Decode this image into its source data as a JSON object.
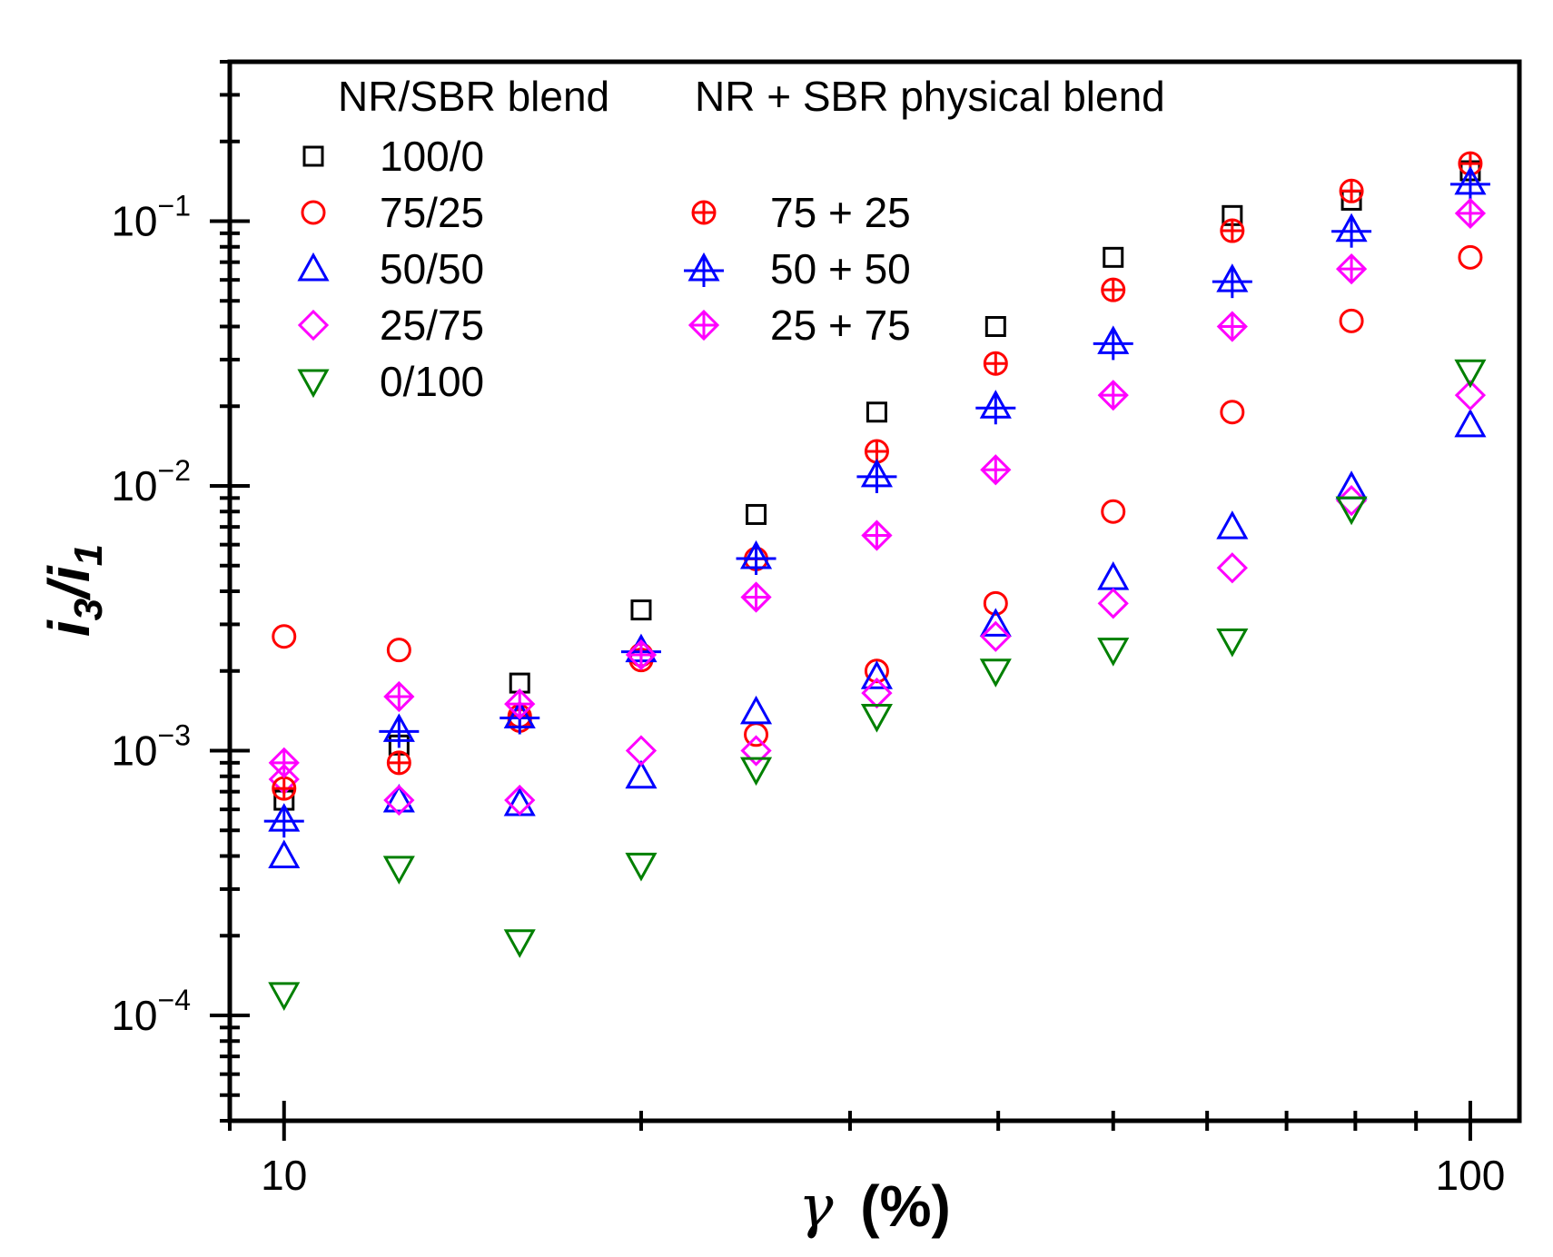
{
  "chart_data": {
    "type": "scatter",
    "xscale": "log",
    "yscale": "log",
    "xlim": [
      9.0,
      110
    ],
    "ylim": [
      4e-05,
      0.4
    ],
    "xlabel": "γ (%)",
    "ylabel": "i3/i1",
    "xlabel_parts": {
      "symbol": "γ",
      "unit": "(%)"
    },
    "ylabel_parts": {
      "num": "i",
      "num_sub": "3",
      "slash": "/",
      "den": "i",
      "den_sub": "1"
    },
    "x_ticks": [
      {
        "value": 10,
        "label": "10"
      },
      {
        "value": 100,
        "label": "100"
      }
    ],
    "y_ticks": [
      {
        "value": 0.0001,
        "base": "10",
        "exp": "−4"
      },
      {
        "value": 0.001,
        "base": "10",
        "exp": "−3"
      },
      {
        "value": 0.01,
        "base": "10",
        "exp": "−2"
      },
      {
        "value": 0.1,
        "base": "10",
        "exp": "−1"
      }
    ],
    "legend_headers": [
      "NR/SBR blend",
      "NR + SBR physical blend"
    ],
    "x": [
      10,
      12.5,
      15.8,
      20,
      25,
      31.6,
      39.8,
      50,
      63,
      79.4,
      100
    ],
    "series": [
      {
        "name": "100/0",
        "group": "NR/SBR blend",
        "marker": "square",
        "color": "#000000",
        "values": [
          0.00065,
          0.00105,
          0.0018,
          0.0034,
          0.0078,
          0.019,
          0.04,
          0.073,
          0.105,
          0.12,
          0.155
        ]
      },
      {
        "name": "75/25",
        "group": "NR/SBR blend",
        "marker": "circle",
        "color": "#ff0000",
        "values": [
          0.0027,
          0.0024,
          0.0013,
          0.0022,
          0.00115,
          0.002,
          0.0036,
          0.008,
          0.019,
          0.042,
          0.073
        ]
      },
      {
        "name": "50/50",
        "group": "NR/SBR blend",
        "marker": "triangle-up",
        "color": "#0000ff",
        "values": [
          0.0004,
          0.00065,
          0.00063,
          0.0008,
          0.0014,
          0.0019,
          0.003,
          0.0045,
          0.007,
          0.0099,
          0.017
        ]
      },
      {
        "name": "25/75",
        "group": "NR/SBR blend",
        "marker": "diamond",
        "color": "#ff00ff",
        "values": [
          0.00078,
          0.00065,
          0.00065,
          0.001,
          0.001,
          0.00165,
          0.0027,
          0.0036,
          0.0049,
          0.0088,
          0.022
        ]
      },
      {
        "name": "0/100",
        "group": "NR/SBR blend",
        "marker": "triangle-down",
        "color": "#008000",
        "values": [
          0.00012,
          0.00036,
          0.00019,
          0.00037,
          0.00085,
          0.00135,
          0.002,
          0.0024,
          0.0026,
          0.0082,
          0.027
        ]
      },
      {
        "name": "75 + 25",
        "group": "NR + SBR physical blend",
        "marker": "circle-plus",
        "color": "#ff0000",
        "values": [
          0.00072,
          0.0009,
          0.00135,
          0.0023,
          0.0053,
          0.0135,
          0.029,
          0.055,
          0.092,
          0.13,
          0.165
        ]
      },
      {
        "name": "50 + 50",
        "group": "NR + SBR physical blend",
        "marker": "triangle-plus",
        "color": "#0000ff",
        "values": [
          0.00055,
          0.0012,
          0.00135,
          0.0024,
          0.0054,
          0.011,
          0.02,
          0.035,
          0.06,
          0.093,
          0.14
        ]
      },
      {
        "name": "25 + 75",
        "group": "NR + SBR physical blend",
        "marker": "diamond-plus",
        "color": "#ff00ff",
        "values": [
          0.0009,
          0.0016,
          0.0015,
          0.0023,
          0.0038,
          0.0065,
          0.0115,
          0.022,
          0.04,
          0.066,
          0.107
        ]
      }
    ]
  }
}
